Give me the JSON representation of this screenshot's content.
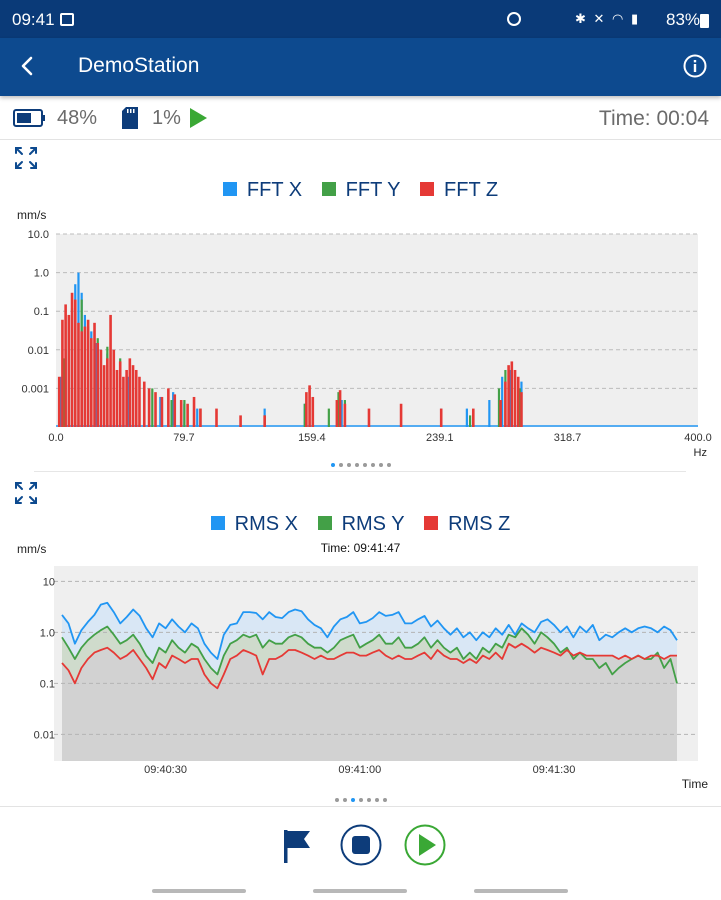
{
  "status_bar": {
    "time": "09:41",
    "battery": "83%"
  },
  "app_bar": {
    "title": "DemoStation"
  },
  "info_bar": {
    "battery_level": "48%",
    "storage_level": "1%",
    "time": "Time: 00:04"
  },
  "colors": {
    "x": "#2196f3",
    "y": "#43a047",
    "z": "#e53935",
    "brand": "#0d4a8f",
    "play": "#3aa835"
  },
  "chart_data": [
    {
      "type": "bar",
      "legend": [
        "FFT X",
        "FFT Y",
        "FFT Z"
      ],
      "ylabel": "mm/s",
      "xlabel": "Hz",
      "y_scale": "log",
      "ylim": [
        0.0001,
        10.0
      ],
      "xlim": [
        0.0,
        400.0
      ],
      "y_ticks": [
        "10.0",
        "1.0",
        "0.1",
        "0.01",
        "0.001"
      ],
      "x_ticks": [
        "0.0",
        "79.7",
        "159.4",
        "239.1",
        "318.7",
        "400.0"
      ],
      "series": [
        {
          "name": "FFT X",
          "x": [
            3,
            6,
            8,
            10,
            12,
            14,
            16,
            18,
            20,
            22,
            25,
            28,
            32,
            36,
            40,
            45,
            50,
            58,
            65,
            73,
            80,
            88,
            130,
            155,
            178,
            240,
            256,
            270,
            278,
            283,
            290
          ],
          "y": [
            0.002,
            0.01,
            0.06,
            0.12,
            0.5,
            1.0,
            0.3,
            0.08,
            0.04,
            0.03,
            0.015,
            0.01,
            0.008,
            0.005,
            0.003,
            0.002,
            0.0015,
            0.0008,
            0.0006,
            0.0008,
            0.0004,
            0.0003,
            0.0003,
            0.0004,
            0.0005,
            0.0003,
            0.0003,
            0.0005,
            0.002,
            0.003,
            0.0015
          ]
        },
        {
          "name": "FFT Y",
          "x": [
            5,
            8,
            12,
            16,
            20,
            26,
            32,
            40,
            50,
            60,
            72,
            80,
            90,
            130,
            155,
            170,
            176,
            180,
            240,
            258,
            276,
            280,
            284,
            289
          ],
          "y": [
            0.006,
            0.04,
            0.15,
            0.2,
            0.03,
            0.02,
            0.012,
            0.006,
            0.002,
            0.001,
            0.0005,
            0.0005,
            0.0003,
            0.0002,
            0.0004,
            0.0003,
            0.0008,
            0.0005,
            0.0002,
            0.0002,
            0.001,
            0.003,
            0.004,
            0.001
          ]
        },
        {
          "name": "FFT Z",
          "x": [
            2,
            4,
            6,
            8,
            10,
            12,
            14,
            16,
            18,
            20,
            22,
            24,
            26,
            28,
            30,
            32,
            34,
            36,
            38,
            40,
            42,
            44,
            46,
            48,
            50,
            52,
            55,
            58,
            62,
            66,
            70,
            74,
            78,
            82,
            86,
            90,
            100,
            115,
            130,
            156,
            158,
            160,
            175,
            177,
            180,
            195,
            215,
            240,
            260,
            277,
            280,
            282,
            284,
            286,
            288,
            290
          ],
          "y": [
            0.002,
            0.06,
            0.15,
            0.08,
            0.3,
            0.2,
            0.05,
            0.03,
            0.04,
            0.06,
            0.02,
            0.05,
            0.015,
            0.01,
            0.004,
            0.006,
            0.08,
            0.01,
            0.003,
            0.005,
            0.002,
            0.003,
            0.006,
            0.004,
            0.003,
            0.002,
            0.0015,
            0.001,
            0.0008,
            0.0006,
            0.001,
            0.0007,
            0.0005,
            0.0004,
            0.0006,
            0.0003,
            0.0003,
            0.0002,
            0.0002,
            0.0008,
            0.0012,
            0.0006,
            0.0005,
            0.0009,
            0.0004,
            0.0003,
            0.0004,
            0.0003,
            0.0003,
            0.0005,
            0.0015,
            0.004,
            0.005,
            0.003,
            0.002,
            0.0008
          ]
        }
      ]
    },
    {
      "type": "line",
      "legend": [
        "RMS X",
        "RMS Y",
        "RMS Z"
      ],
      "ylabel": "mm/s",
      "xlabel": "Time",
      "subtitle": "Time: 09:41:47",
      "y_scale": "log",
      "ylim": [
        0.003,
        20
      ],
      "y_ticks": [
        "10",
        "1.0",
        "0.1",
        "0.01"
      ],
      "x_ticks": [
        "09:40:30",
        "09:41:00",
        "09:41:30"
      ],
      "x_tick_seconds": [
        30,
        60,
        90
      ],
      "xlim_seconds": [
        14,
        109
      ],
      "series": [
        {
          "name": "RMS X",
          "x": [
            14,
            15,
            16,
            17,
            18,
            19,
            20,
            21,
            22,
            23,
            24,
            25,
            26,
            27,
            28,
            29,
            30,
            31,
            32,
            33,
            34,
            35,
            36,
            37,
            38,
            39,
            40,
            41,
            42,
            43,
            44,
            45,
            46,
            47,
            48,
            49,
            50,
            51,
            52,
            53,
            54,
            55,
            56,
            57,
            58,
            59,
            60,
            61,
            62,
            63,
            64,
            65,
            66,
            67,
            68,
            69,
            70,
            71,
            72,
            73,
            74,
            75,
            76,
            77,
            78,
            79,
            80,
            81,
            82,
            83,
            84,
            85,
            86,
            87,
            88,
            89,
            90,
            91,
            92,
            93,
            94,
            95,
            96,
            97,
            98,
            99,
            100,
            101,
            102,
            103,
            104,
            105,
            106,
            107,
            108,
            109
          ],
          "y": [
            2.2,
            1.5,
            0.6,
            1.1,
            1.6,
            2.2,
            3.5,
            3.8,
            2.5,
            1.5,
            2.0,
            2.8,
            2.1,
            1.2,
            0.8,
            1.5,
            1.2,
            1.8,
            1.3,
            1.0,
            1.5,
            1.2,
            0.6,
            0.4,
            0.3,
            0.9,
            1.4,
            1.5,
            2.5,
            2.5,
            2.4,
            1.8,
            2.5,
            2.0,
            1.9,
            2.5,
            2.8,
            2.6,
            1.8,
            1.4,
            1.2,
            0.8,
            1.3,
            1.8,
            2.0,
            2.5,
            1.5,
            1.6,
            1.9,
            2.5,
            2.1,
            2.2,
            2.5,
            1.5,
            1.5,
            1.8,
            2.1,
            1.3,
            1.7,
            1.2,
            0.9,
            1.2,
            0.8,
            1.0,
            0.7,
            1.0,
            0.8,
            1.2,
            0.9,
            1.4,
            0.9,
            1.5,
            1.2,
            1.0,
            1.6,
            1.8,
            1.4,
            1.0,
            1.3,
            0.8,
            1.3,
            1.0,
            1.4,
            0.7,
            0.9,
            0.8,
            1.0,
            1.2,
            1.0,
            1.2,
            1.3,
            1.2,
            1.0,
            1.3,
            1.1,
            0.7
          ]
        },
        {
          "name": "RMS Y",
          "x": [
            14,
            15,
            16,
            17,
            18,
            19,
            20,
            21,
            22,
            23,
            24,
            25,
            26,
            27,
            28,
            29,
            30,
            31,
            32,
            33,
            34,
            35,
            36,
            37,
            38,
            39,
            40,
            41,
            42,
            43,
            44,
            45,
            46,
            47,
            48,
            49,
            50,
            51,
            52,
            53,
            54,
            55,
            56,
            57,
            58,
            59,
            60,
            61,
            62,
            63,
            64,
            65,
            66,
            67,
            68,
            69,
            70,
            71,
            72,
            73,
            74,
            75,
            76,
            77,
            78,
            79,
            80,
            81,
            82,
            83,
            84,
            85,
            86,
            87,
            88,
            89,
            90,
            91,
            92,
            93,
            94,
            95,
            96,
            97,
            98,
            99,
            100,
            101,
            102,
            103,
            104,
            105,
            106,
            107,
            108,
            109
          ],
          "y": [
            0.8,
            0.5,
            0.3,
            0.5,
            0.7,
            0.9,
            1.1,
            1.3,
            0.9,
            0.6,
            0.7,
            0.9,
            0.6,
            0.35,
            0.25,
            0.5,
            0.4,
            0.7,
            0.5,
            0.4,
            0.6,
            0.5,
            0.3,
            0.2,
            0.15,
            0.35,
            0.6,
            0.7,
            0.9,
            0.8,
            0.9,
            0.5,
            0.7,
            0.6,
            0.6,
            0.8,
            0.9,
            0.8,
            0.6,
            0.5,
            0.5,
            0.4,
            0.5,
            0.7,
            0.8,
            0.9,
            0.5,
            0.6,
            0.7,
            0.9,
            0.6,
            0.6,
            0.8,
            0.5,
            0.5,
            0.6,
            0.8,
            0.5,
            0.7,
            0.5,
            0.4,
            0.5,
            0.3,
            0.4,
            0.3,
            0.5,
            0.4,
            0.6,
            0.5,
            0.9,
            0.8,
            1.2,
            0.9,
            0.6,
            1.0,
            0.8,
            0.6,
            0.4,
            0.5,
            0.3,
            0.4,
            0.3,
            0.3,
            0.2,
            0.25,
            0.15,
            0.2,
            0.25,
            0.3,
            0.35,
            0.3,
            0.3,
            0.4,
            0.2,
            0.3,
            0.1
          ]
        },
        {
          "name": "RMS Z",
          "x": [
            14,
            15,
            16,
            17,
            18,
            19,
            20,
            21,
            22,
            23,
            24,
            25,
            26,
            27,
            28,
            29,
            30,
            31,
            32,
            33,
            34,
            35,
            36,
            37,
            38,
            39,
            40,
            41,
            42,
            43,
            44,
            45,
            46,
            47,
            48,
            49,
            50,
            51,
            52,
            53,
            54,
            55,
            56,
            57,
            58,
            59,
            60,
            61,
            62,
            63,
            64,
            65,
            66,
            67,
            68,
            69,
            70,
            71,
            72,
            73,
            74,
            75,
            76,
            77,
            78,
            79,
            80,
            81,
            82,
            83,
            84,
            85,
            86,
            87,
            88,
            89,
            90,
            91,
            92,
            93,
            94,
            95,
            96,
            97,
            98,
            99,
            100,
            101,
            102,
            103,
            104,
            105,
            106,
            107,
            108,
            109
          ],
          "y": [
            0.25,
            0.18,
            0.1,
            0.2,
            0.3,
            0.4,
            0.45,
            0.5,
            0.4,
            0.3,
            0.35,
            0.45,
            0.3,
            0.2,
            0.12,
            0.25,
            0.2,
            0.35,
            0.3,
            0.25,
            0.3,
            0.3,
            0.15,
            0.1,
            0.08,
            0.15,
            0.3,
            0.35,
            0.45,
            0.4,
            0.35,
            0.15,
            0.3,
            0.3,
            0.35,
            0.45,
            0.45,
            0.4,
            0.35,
            0.3,
            0.35,
            0.3,
            0.3,
            0.35,
            0.4,
            0.4,
            0.35,
            0.35,
            0.4,
            0.45,
            0.35,
            0.3,
            0.35,
            0.3,
            0.3,
            0.35,
            0.4,
            0.3,
            0.45,
            0.35,
            0.3,
            0.3,
            0.25,
            0.3,
            0.25,
            0.35,
            0.3,
            0.4,
            0.3,
            0.6,
            0.5,
            0.6,
            0.5,
            0.4,
            0.5,
            0.45,
            0.4,
            0.35,
            0.45,
            0.35,
            0.4,
            0.35,
            0.35,
            0.35,
            0.35,
            0.35,
            0.3,
            0.35,
            0.3,
            0.35,
            0.3,
            0.35,
            0.35,
            0.3,
            0.35,
            0.35
          ]
        }
      ]
    }
  ]
}
